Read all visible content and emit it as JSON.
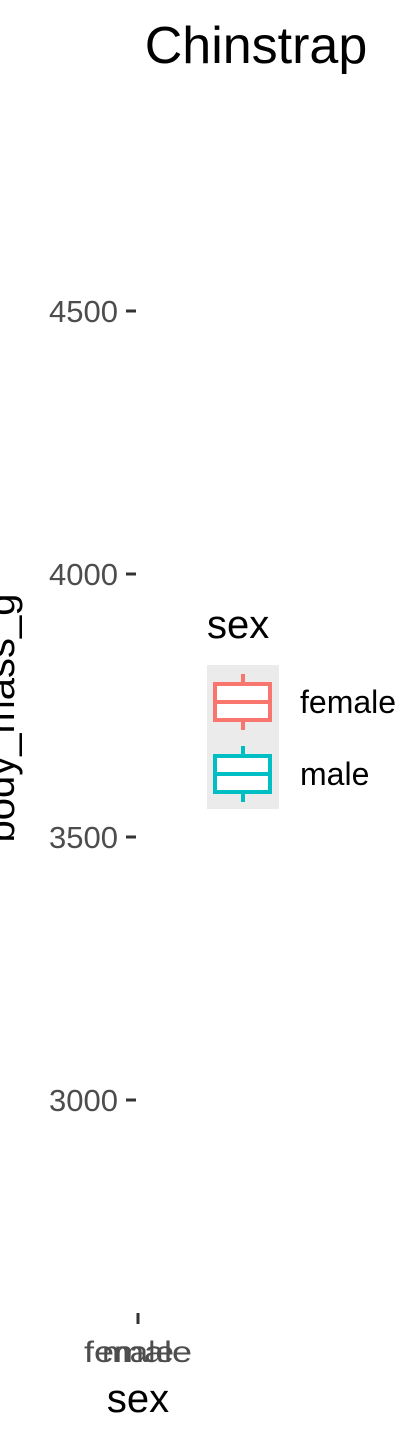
{
  "chart_data": {
    "type": "box",
    "title": "Chinstrap",
    "xlabel": "sex",
    "ylabel": "body_mass_g",
    "categories": [
      "female",
      "male"
    ],
    "ylim": [
      2700,
      4950
    ],
    "yticks": [
      3000,
      3500,
      4000,
      4500
    ],
    "grid": false,
    "legend": {
      "title": "sex",
      "position": "right",
      "entries": [
        {
          "label": "female",
          "color": "#F8766D"
        },
        {
          "label": "male",
          "color": "#00BFC4"
        }
      ]
    }
  }
}
